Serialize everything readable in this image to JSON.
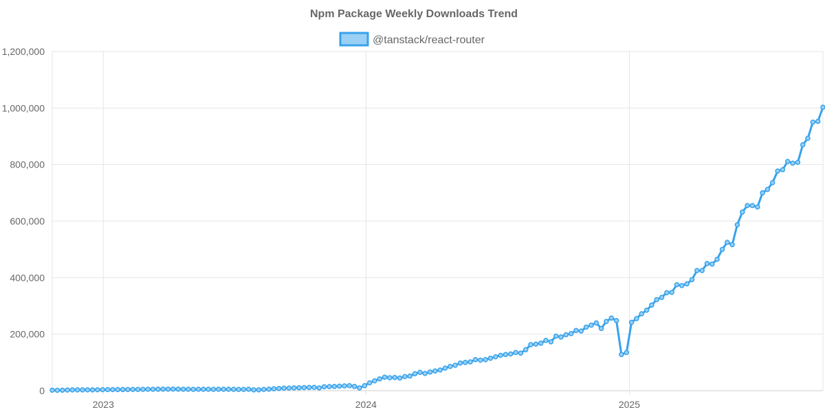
{
  "chart_data": {
    "type": "line",
    "title": "Npm Package Weekly Downloads Trend",
    "xlabel": "",
    "ylabel": "",
    "ylim": [
      0,
      1200000
    ],
    "y_ticks": [
      "0",
      "200,000",
      "400,000",
      "600,000",
      "800,000",
      "1,000,000",
      "1,200,000"
    ],
    "y_tick_values": [
      0,
      200000,
      400000,
      600000,
      800000,
      1000000,
      1200000
    ],
    "x_range": [
      "2022-10-22",
      "2025-09-27"
    ],
    "x_ticks": [
      {
        "label": "2023",
        "date": "2023-01-01"
      },
      {
        "label": "2024",
        "date": "2024-01-01"
      },
      {
        "label": "2025",
        "date": "2025-01-01"
      }
    ],
    "grid": true,
    "legend_position": "top",
    "series": [
      {
        "name": "@tanstack/react-router",
        "color": "#36a2eb",
        "fill_color": "#9ad0f5",
        "x": [
          "2022-10-22",
          "2022-10-29",
          "2022-11-05",
          "2022-11-12",
          "2022-11-19",
          "2022-11-26",
          "2022-12-03",
          "2022-12-10",
          "2022-12-17",
          "2022-12-24",
          "2022-12-31",
          "2023-01-07",
          "2023-01-14",
          "2023-01-21",
          "2023-01-28",
          "2023-02-04",
          "2023-02-11",
          "2023-02-18",
          "2023-02-25",
          "2023-03-04",
          "2023-03-11",
          "2023-03-18",
          "2023-03-25",
          "2023-04-01",
          "2023-04-08",
          "2023-04-15",
          "2023-04-22",
          "2023-04-29",
          "2023-05-06",
          "2023-05-13",
          "2023-05-20",
          "2023-05-27",
          "2023-06-03",
          "2023-06-10",
          "2023-06-17",
          "2023-06-24",
          "2023-07-01",
          "2023-07-08",
          "2023-07-15",
          "2023-07-22",
          "2023-07-29",
          "2023-08-05",
          "2023-08-12",
          "2023-08-19",
          "2023-08-26",
          "2023-09-02",
          "2023-09-09",
          "2023-09-16",
          "2023-09-23",
          "2023-09-30",
          "2023-10-07",
          "2023-10-14",
          "2023-10-21",
          "2023-10-28",
          "2023-11-04",
          "2023-11-11",
          "2023-11-18",
          "2023-11-25",
          "2023-12-02",
          "2023-12-09",
          "2023-12-16",
          "2023-12-23",
          "2023-12-30",
          "2024-01-06",
          "2024-01-13",
          "2024-01-20",
          "2024-01-27",
          "2024-02-03",
          "2024-02-10",
          "2024-02-17",
          "2024-02-24",
          "2024-03-02",
          "2024-03-09",
          "2024-03-16",
          "2024-03-23",
          "2024-03-30",
          "2024-04-06",
          "2024-04-13",
          "2024-04-20",
          "2024-04-27",
          "2024-05-04",
          "2024-05-11",
          "2024-05-18",
          "2024-05-25",
          "2024-06-01",
          "2024-06-08",
          "2024-06-15",
          "2024-06-22",
          "2024-06-29",
          "2024-07-06",
          "2024-07-13",
          "2024-07-20",
          "2024-07-27",
          "2024-08-03",
          "2024-08-10",
          "2024-08-17",
          "2024-08-24",
          "2024-08-31",
          "2024-09-07",
          "2024-09-14",
          "2024-09-21",
          "2024-09-28",
          "2024-10-05",
          "2024-10-12",
          "2024-10-19",
          "2024-10-26",
          "2024-11-02",
          "2024-11-09",
          "2024-11-16",
          "2024-11-23",
          "2024-11-30",
          "2024-12-07",
          "2024-12-14",
          "2024-12-21",
          "2024-12-28",
          "2025-01-04",
          "2025-01-11",
          "2025-01-18",
          "2025-01-25",
          "2025-02-01",
          "2025-02-08",
          "2025-02-15",
          "2025-02-22",
          "2025-03-01",
          "2025-03-08",
          "2025-03-15",
          "2025-03-22",
          "2025-03-29",
          "2025-04-05",
          "2025-04-12",
          "2025-04-19",
          "2025-04-26",
          "2025-05-03",
          "2025-05-10",
          "2025-05-17",
          "2025-05-24",
          "2025-05-31",
          "2025-06-07",
          "2025-06-14",
          "2025-06-21",
          "2025-06-28",
          "2025-07-05",
          "2025-07-12",
          "2025-07-19",
          "2025-07-26",
          "2025-08-02",
          "2025-08-09",
          "2025-08-16",
          "2025-08-23",
          "2025-08-30",
          "2025-09-06",
          "2025-09-13",
          "2025-09-20",
          "2025-09-27"
        ],
        "values": [
          2000,
          1500,
          2000,
          2500,
          3000,
          2800,
          3000,
          3200,
          3000,
          3400,
          3600,
          3800,
          4000,
          4200,
          4100,
          4300,
          4500,
          4700,
          4800,
          5000,
          5200,
          5400,
          5600,
          5500,
          5800,
          5600,
          5200,
          5000,
          4800,
          5000,
          5200,
          5000,
          4800,
          5000,
          5200,
          5000,
          4800,
          4600,
          4700,
          5200,
          3000,
          3200,
          4500,
          5500,
          7000,
          8000,
          9000,
          9500,
          10000,
          10500,
          11000,
          11500,
          11800,
          10000,
          14000,
          14500,
          15000,
          16000,
          17000,
          18000,
          15000,
          10000,
          18000,
          28000,
          35000,
          42000,
          48000,
          46000,
          47000,
          45000,
          50000,
          52000,
          60000,
          65000,
          61000,
          66000,
          70000,
          73000,
          80000,
          86000,
          90000,
          98000,
          100000,
          102000,
          110000,
          108000,
          110000,
          115000,
          120000,
          125000,
          128000,
          130000,
          135000,
          133000,
          145000,
          163000,
          165000,
          168000,
          178000,
          173000,
          193000,
          190000,
          198000,
          202000,
          213000,
          211000,
          225000,
          232000,
          240000,
          220000,
          245000,
          257000,
          248000,
          128000,
          135000,
          242000,
          255000,
          272000,
          285000,
          303000,
          322000,
          330000,
          347000,
          348000,
          375000,
          372000,
          378000,
          393000,
          425000,
          425000,
          450000,
          448000,
          465000,
          500000,
          525000,
          517000,
          587000,
          632000,
          655000,
          655000,
          650000,
          700000,
          712000,
          736000,
          777000,
          782000,
          811000,
          805000,
          808000,
          870000,
          893000,
          950000,
          953000,
          1003000
        ]
      }
    ]
  }
}
